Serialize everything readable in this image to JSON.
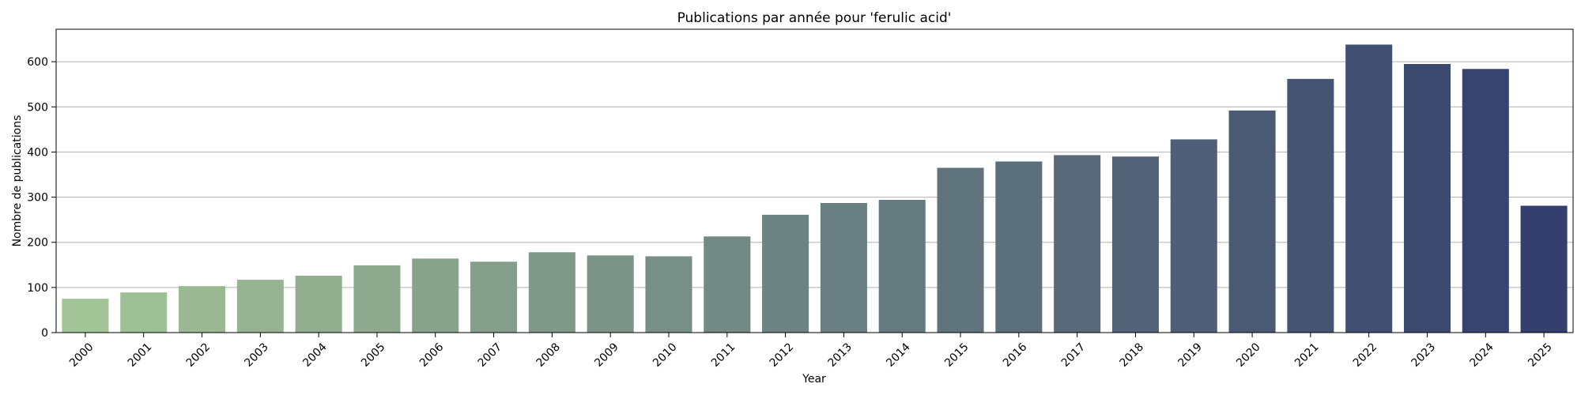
{
  "chart_data": {
    "type": "bar",
    "title": "Publications par année pour 'ferulic acid'",
    "xlabel": "Year",
    "ylabel": "Nombre de publications",
    "categories": [
      "2000",
      "2001",
      "2002",
      "2003",
      "2004",
      "2005",
      "2006",
      "2007",
      "2008",
      "2009",
      "2010",
      "2011",
      "2012",
      "2013",
      "2014",
      "2015",
      "2016",
      "2017",
      "2018",
      "2019",
      "2020",
      "2021",
      "2022",
      "2023",
      "2024",
      "2025"
    ],
    "values": [
      75,
      89,
      103,
      117,
      126,
      149,
      164,
      157,
      178,
      171,
      169,
      213,
      261,
      287,
      294,
      365,
      379,
      393,
      390,
      428,
      492,
      562,
      638,
      595,
      584,
      281
    ],
    "ylim": [
      0,
      672
    ],
    "yticks": [
      0,
      100,
      200,
      300,
      400,
      500,
      600
    ],
    "grid": "y",
    "palette": "crest",
    "color_start": "#a3c496",
    "color_end": "#343f6d"
  }
}
